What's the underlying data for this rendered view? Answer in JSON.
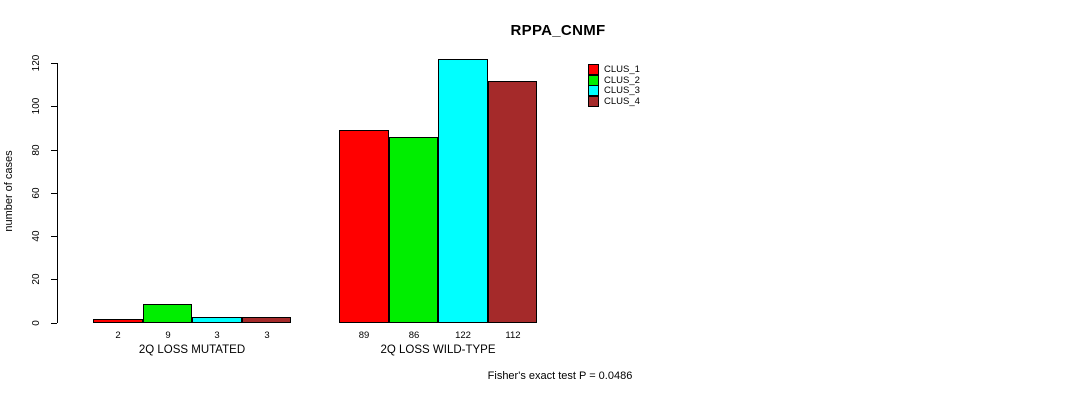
{
  "chart_data": {
    "type": "bar",
    "title": "RPPA_CNMF",
    "ylabel": "number of cases",
    "xlabel": "",
    "categories": [
      "2Q LOSS MUTATED",
      "2Q LOSS WILD-TYPE"
    ],
    "series": [
      {
        "name": "CLUS_1",
        "color": "#FF0000",
        "values": [
          2,
          89
        ]
      },
      {
        "name": "CLUS_2",
        "color": "#00EE00",
        "values": [
          9,
          86
        ]
      },
      {
        "name": "CLUS_3",
        "color": "#00FFFF",
        "values": [
          3,
          122
        ]
      },
      {
        "name": "CLUS_4",
        "color": "#A52A2A",
        "values": [
          3,
          112
        ]
      }
    ],
    "bar_value_labels": [
      [
        "2",
        "9",
        "3",
        "3"
      ],
      [
        "89",
        "86",
        "122",
        "112"
      ]
    ],
    "y_ticks": [
      0,
      20,
      40,
      60,
      80,
      100,
      120
    ],
    "ylim": [
      0,
      130
    ],
    "grid": false,
    "legend_position": "right-of-plot-top",
    "legend_entries": [
      "CLUS_1",
      "CLUS_2",
      "CLUS_3",
      "CLUS_4"
    ],
    "annotations": [
      "Fisher's exact test P = 0.0486"
    ],
    "axis_color": "#000000",
    "background_color": "#FFFFFF"
  }
}
